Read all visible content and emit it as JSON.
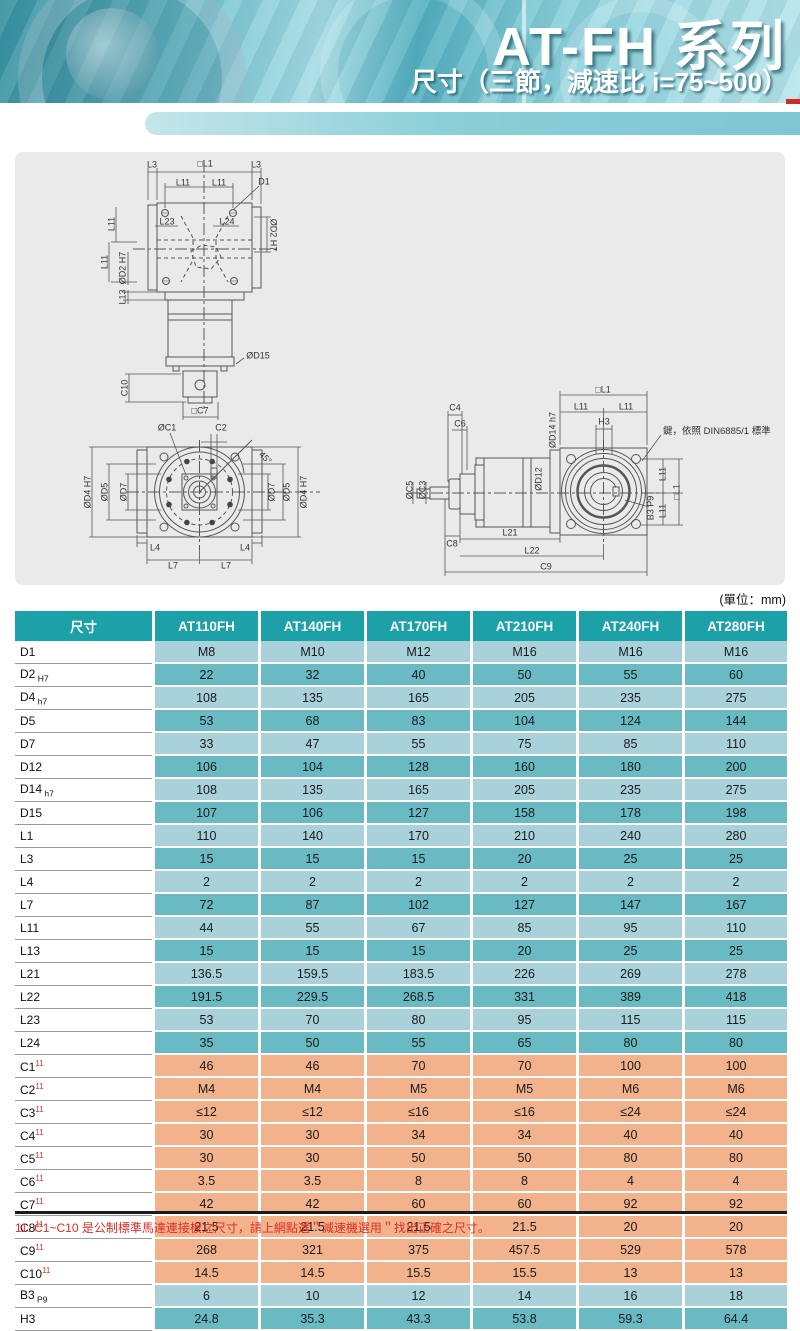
{
  "header": {
    "title": "AT-FH 系列",
    "subtitle": "尺寸（三節，減速比 i=75~500）"
  },
  "unit_label": "(單位：mm)",
  "drawings": {
    "key_note": "鍵，依照 DIN6885/1 標準",
    "top": [
      "L3",
      "□L1",
      "L3",
      "L11",
      "L11",
      "D1",
      "L23",
      "L24",
      "ØD2 H7",
      "L11",
      "L11",
      "ØD2 H7",
      "L13",
      "ØD15",
      "C10",
      "□C7"
    ],
    "front": [
      "ØC1",
      "C2",
      "ØD4 H7",
      "ØD5",
      "ØD7",
      "ØD7",
      "ØD5",
      "ØD4 H7",
      "45°",
      "L4",
      "L4",
      "L7",
      "L7"
    ],
    "side": [
      "C4",
      "C6",
      "ØC5",
      "ØC3",
      "ØD12",
      "ØD14 h7",
      "□L1",
      "L11",
      "L11",
      "H3",
      "L11",
      "□L1",
      "L11",
      "B3 P9",
      "C8",
      "L21",
      "L22",
      "C9"
    ]
  },
  "table": {
    "columns": [
      "尺寸",
      "AT110FH",
      "AT140FH",
      "AT170FH",
      "AT210FH",
      "AT240FH",
      "AT280FH"
    ],
    "rows": [
      {
        "l": "D1",
        "sub": "",
        "sup": "",
        "band": "light",
        "v": [
          "M8",
          "M10",
          "M12",
          "M16",
          "M16",
          "M16"
        ]
      },
      {
        "l": "D2",
        "sub": "H7",
        "sup": "",
        "band": "dark",
        "v": [
          "22",
          "32",
          "40",
          "50",
          "55",
          "60"
        ]
      },
      {
        "l": "D4",
        "sub": "h7",
        "sup": "",
        "band": "light",
        "v": [
          "108",
          "135",
          "165",
          "205",
          "235",
          "275"
        ]
      },
      {
        "l": "D5",
        "sub": "",
        "sup": "",
        "band": "dark",
        "v": [
          "53",
          "68",
          "83",
          "104",
          "124",
          "144"
        ]
      },
      {
        "l": "D7",
        "sub": "",
        "sup": "",
        "band": "light",
        "v": [
          "33",
          "47",
          "55",
          "75",
          "85",
          "110"
        ]
      },
      {
        "l": "D12",
        "sub": "",
        "sup": "",
        "band": "dark",
        "v": [
          "106",
          "104",
          "128",
          "160",
          "180",
          "200"
        ]
      },
      {
        "l": "D14",
        "sub": "h7",
        "sup": "",
        "band": "light",
        "v": [
          "108",
          "135",
          "165",
          "205",
          "235",
          "275"
        ]
      },
      {
        "l": "D15",
        "sub": "",
        "sup": "",
        "band": "dark",
        "v": [
          "107",
          "106",
          "127",
          "158",
          "178",
          "198"
        ]
      },
      {
        "l": "L1",
        "sub": "",
        "sup": "",
        "band": "light",
        "v": [
          "110",
          "140",
          "170",
          "210",
          "240",
          "280"
        ]
      },
      {
        "l": "L3",
        "sub": "",
        "sup": "",
        "band": "dark",
        "v": [
          "15",
          "15",
          "15",
          "20",
          "25",
          "25"
        ]
      },
      {
        "l": "L4",
        "sub": "",
        "sup": "",
        "band": "light",
        "v": [
          "2",
          "2",
          "2",
          "2",
          "2",
          "2"
        ]
      },
      {
        "l": "L7",
        "sub": "",
        "sup": "",
        "band": "dark",
        "v": [
          "72",
          "87",
          "102",
          "127",
          "147",
          "167"
        ]
      },
      {
        "l": "L11",
        "sub": "",
        "sup": "",
        "band": "light",
        "v": [
          "44",
          "55",
          "67",
          "85",
          "95",
          "110"
        ]
      },
      {
        "l": "L13",
        "sub": "",
        "sup": "",
        "band": "dark",
        "v": [
          "15",
          "15",
          "15",
          "20",
          "25",
          "25"
        ]
      },
      {
        "l": "L21",
        "sub": "",
        "sup": "",
        "band": "light",
        "v": [
          "136.5",
          "159.5",
          "183.5",
          "226",
          "269",
          "278"
        ]
      },
      {
        "l": "L22",
        "sub": "",
        "sup": "",
        "band": "dark",
        "v": [
          "191.5",
          "229.5",
          "268.5",
          "331",
          "389",
          "418"
        ]
      },
      {
        "l": "L23",
        "sub": "",
        "sup": "",
        "band": "light",
        "v": [
          "53",
          "70",
          "80",
          "95",
          "115",
          "115"
        ]
      },
      {
        "l": "L24",
        "sub": "",
        "sup": "",
        "band": "dark",
        "v": [
          "35",
          "50",
          "55",
          "65",
          "80",
          "80"
        ]
      },
      {
        "l": "C1",
        "sub": "",
        "sup": "11",
        "band": "orange",
        "v": [
          "46",
          "46",
          "70",
          "70",
          "100",
          "100"
        ]
      },
      {
        "l": "C2",
        "sub": "",
        "sup": "11",
        "band": "orange",
        "v": [
          "M4",
          "M4",
          "M5",
          "M5",
          "M6",
          "M6"
        ]
      },
      {
        "l": "C3",
        "sub": "",
        "sup": "11",
        "band": "orange",
        "v": [
          "≤12",
          "≤12",
          "≤16",
          "≤16",
          "≤24",
          "≤24"
        ]
      },
      {
        "l": "C4",
        "sub": "",
        "sup": "11",
        "band": "orange",
        "v": [
          "30",
          "30",
          "34",
          "34",
          "40",
          "40"
        ]
      },
      {
        "l": "C5",
        "sub": "",
        "sup": "11",
        "band": "orange",
        "v": [
          "30",
          "30",
          "50",
          "50",
          "80",
          "80"
        ]
      },
      {
        "l": "C6",
        "sub": "",
        "sup": "11",
        "band": "orange",
        "v": [
          "3.5",
          "3.5",
          "8",
          "8",
          "4",
          "4"
        ]
      },
      {
        "l": "C7",
        "sub": "",
        "sup": "11",
        "band": "orange",
        "v": [
          "42",
          "42",
          "60",
          "60",
          "92",
          "92"
        ]
      },
      {
        "l": "C8",
        "sub": "",
        "sup": "11",
        "band": "orange",
        "v": [
          "21.5",
          "21.5",
          "21.5",
          "21.5",
          "20",
          "20"
        ]
      },
      {
        "l": "C9",
        "sub": "",
        "sup": "11",
        "band": "orange",
        "v": [
          "268",
          "321",
          "375",
          "457.5",
          "529",
          "578"
        ]
      },
      {
        "l": "C10",
        "sub": "",
        "sup": "11",
        "band": "orange",
        "v": [
          "14.5",
          "14.5",
          "15.5",
          "15.5",
          "13",
          "13"
        ]
      },
      {
        "l": "B3",
        "sub": "P9",
        "sup": "",
        "band": "light",
        "v": [
          "6",
          "10",
          "12",
          "14",
          "16",
          "18"
        ]
      },
      {
        "l": "H3",
        "sub": "",
        "sup": "",
        "band": "dark",
        "v": [
          "24.8",
          "35.3",
          "43.3",
          "53.8",
          "59.3",
          "64.4"
        ]
      }
    ]
  },
  "footnote": "11. C1~C10 是公制標準馬達連接板之尺寸，請上網點選＂減速機選用＂找出正確之尺寸。",
  "colors": {
    "header_teal": "#1ca1a9",
    "row_light": "#a8d1d9",
    "row_dark": "#69bac3",
    "row_orange": "#f2b28b",
    "accent_red": "#cf2b20",
    "footnote_red": "#e02e24"
  }
}
